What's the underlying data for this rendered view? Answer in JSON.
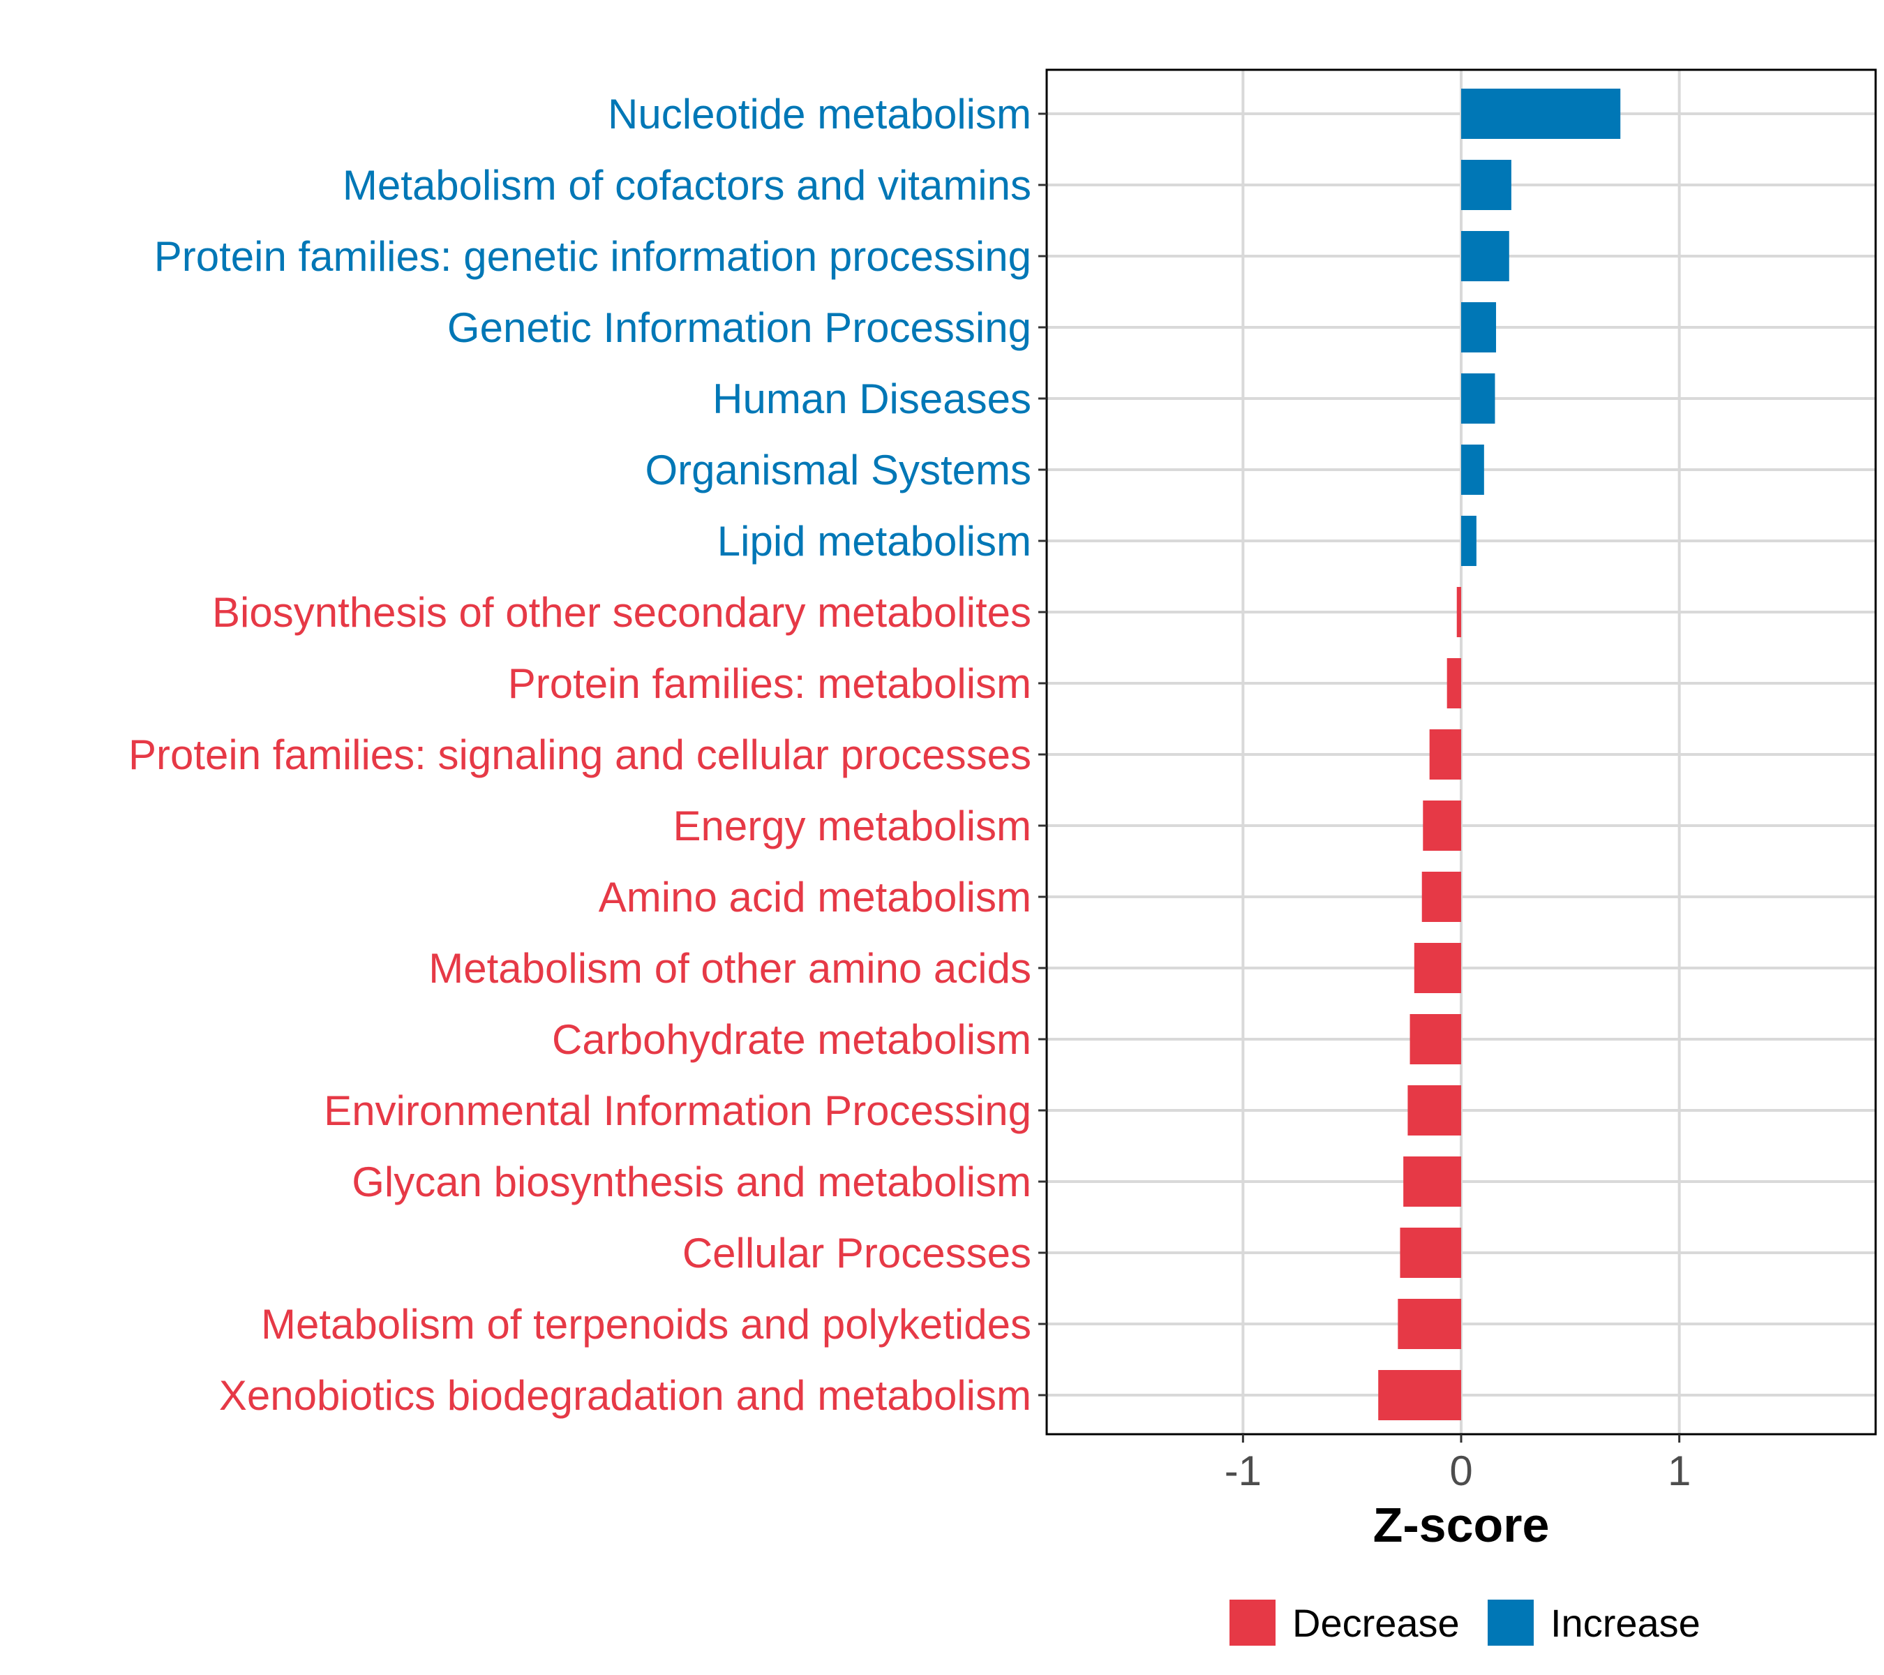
{
  "chart_data": {
    "type": "bar",
    "orientation": "horizontal",
    "xlabel": "Z-score",
    "xlim": [
      -1.9,
      1.9
    ],
    "xticks": [
      -1,
      0,
      1
    ],
    "xtick_labels": [
      "-1",
      "0",
      "1"
    ],
    "grid": true,
    "legend_position": "bottom",
    "colors": {
      "Decrease": "#e63946",
      "Increase": "#0077b6"
    },
    "legend": [
      {
        "label": "Decrease",
        "color": "#e63946"
      },
      {
        "label": "Increase",
        "color": "#0077b6"
      }
    ],
    "categories": [
      "Nucleotide metabolism",
      "Metabolism of cofactors and vitamins",
      "Protein families: genetic information processing",
      "Genetic Information Processing",
      "Human Diseases",
      "Organismal Systems",
      "Lipid metabolism",
      "Biosynthesis of other secondary metabolites",
      "Protein families: metabolism",
      "Protein families: signaling and cellular processes",
      "Energy metabolism",
      "Amino acid metabolism",
      "Metabolism of other amino acids",
      "Carbohydrate metabolism",
      "Environmental Information Processing",
      "Glycan biosynthesis and metabolism",
      "Cellular Processes",
      "Metabolism of terpenoids and polyketides",
      "Xenobiotics biodegradation and metabolism"
    ],
    "values": [
      0.73,
      0.23,
      0.22,
      0.16,
      0.155,
      0.105,
      0.07,
      -0.02,
      -0.065,
      -0.145,
      -0.175,
      -0.18,
      -0.215,
      -0.235,
      -0.245,
      -0.265,
      -0.28,
      -0.29,
      -0.38
    ],
    "groups": [
      "Increase",
      "Increase",
      "Increase",
      "Increase",
      "Increase",
      "Increase",
      "Increase",
      "Decrease",
      "Decrease",
      "Decrease",
      "Decrease",
      "Decrease",
      "Decrease",
      "Decrease",
      "Decrease",
      "Decrease",
      "Decrease",
      "Decrease",
      "Decrease"
    ]
  }
}
